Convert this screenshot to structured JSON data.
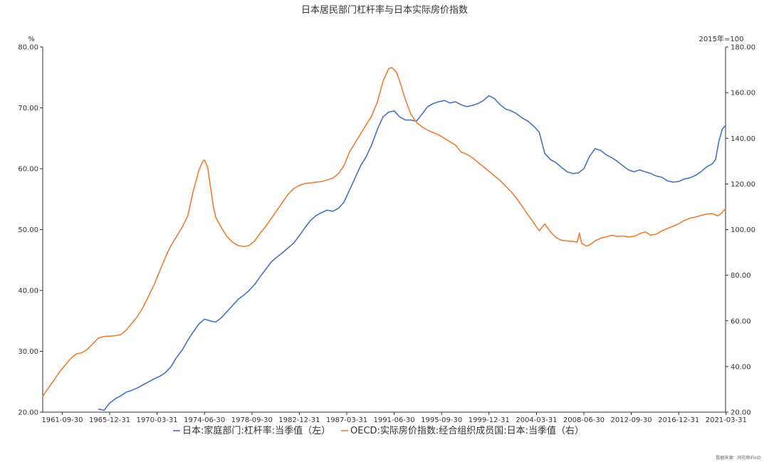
{
  "chart_data": {
    "type": "line",
    "title": "日本居民部门杠杆率与日本实际房价指数",
    "y_left_unit": "%",
    "y_right_unit": "2015年=100",
    "y_left_range": [
      20,
      80
    ],
    "y_right_range": [
      20,
      180
    ],
    "y_left_ticks": [
      "20.00",
      "30.00",
      "40.00",
      "50.00",
      "60.00",
      "70.00",
      "80.00"
    ],
    "y_right_ticks": [
      "20.00",
      "40.00",
      "60.00",
      "80.00",
      "100.00",
      "120.00",
      "140.00",
      "160.00",
      "180.00"
    ],
    "x_range": [
      1960.0,
      2021.2
    ],
    "x_ticks": [
      {
        "label": "1961-09-30",
        "x": 1961.75
      },
      {
        "label": "1965-12-31",
        "x": 1966.0
      },
      {
        "label": "1970-03-31",
        "x": 1970.25
      },
      {
        "label": "1974-06-30",
        "x": 1974.5
      },
      {
        "label": "1978-09-30",
        "x": 1978.75
      },
      {
        "label": "1982-12-31",
        "x": 1983.0
      },
      {
        "label": "1987-03-31",
        "x": 1987.25
      },
      {
        "label": "1991-06-30",
        "x": 1991.5
      },
      {
        "label": "1995-09-30",
        "x": 1995.75
      },
      {
        "label": "1999-12-31",
        "x": 2000.0
      },
      {
        "label": "2004-03-31",
        "x": 2004.25
      },
      {
        "label": "2008-06-30",
        "x": 2008.5
      },
      {
        "label": "2012-09-30",
        "x": 2012.75
      },
      {
        "label": "2016-12-31",
        "x": 2017.0
      },
      {
        "label": "2021-03-31",
        "x": 2021.25
      }
    ],
    "series": [
      {
        "name": "日本:家庭部门:杠杆率:当季值（左）",
        "axis": "left",
        "color": "#4472C4",
        "points": [
          [
            1965.0,
            20.5
          ],
          [
            1965.5,
            20.3
          ],
          [
            1966.0,
            21.5
          ],
          [
            1966.5,
            22.2
          ],
          [
            1967.0,
            22.7
          ],
          [
            1967.5,
            23.3
          ],
          [
            1968.0,
            23.6
          ],
          [
            1968.5,
            24.0
          ],
          [
            1969.0,
            24.5
          ],
          [
            1969.5,
            25.0
          ],
          [
            1970.0,
            25.5
          ],
          [
            1970.5,
            25.9
          ],
          [
            1971.0,
            26.5
          ],
          [
            1971.5,
            27.5
          ],
          [
            1972.0,
            29.0
          ],
          [
            1972.5,
            30.2
          ],
          [
            1973.0,
            31.8
          ],
          [
            1973.5,
            33.2
          ],
          [
            1974.0,
            34.5
          ],
          [
            1974.5,
            35.3
          ],
          [
            1975.0,
            35.0
          ],
          [
            1975.5,
            34.8
          ],
          [
            1976.0,
            35.5
          ],
          [
            1976.5,
            36.5
          ],
          [
            1977.0,
            37.5
          ],
          [
            1977.5,
            38.5
          ],
          [
            1978.0,
            39.2
          ],
          [
            1978.5,
            40.0
          ],
          [
            1979.0,
            41.0
          ],
          [
            1979.5,
            42.3
          ],
          [
            1980.0,
            43.5
          ],
          [
            1980.5,
            44.7
          ],
          [
            1981.0,
            45.5
          ],
          [
            1981.5,
            46.2
          ],
          [
            1982.0,
            47.0
          ],
          [
            1982.5,
            47.8
          ],
          [
            1983.0,
            49.0
          ],
          [
            1983.5,
            50.3
          ],
          [
            1984.0,
            51.5
          ],
          [
            1984.5,
            52.3
          ],
          [
            1985.0,
            52.8
          ],
          [
            1985.5,
            53.2
          ],
          [
            1986.0,
            53.0
          ],
          [
            1986.5,
            53.5
          ],
          [
            1987.0,
            54.5
          ],
          [
            1987.5,
            56.5
          ],
          [
            1988.0,
            58.5
          ],
          [
            1988.5,
            60.5
          ],
          [
            1989.0,
            62.0
          ],
          [
            1989.5,
            64.0
          ],
          [
            1990.0,
            66.5
          ],
          [
            1990.5,
            68.5
          ],
          [
            1991.0,
            69.3
          ],
          [
            1991.5,
            69.5
          ],
          [
            1992.0,
            68.5
          ],
          [
            1992.5,
            68.0
          ],
          [
            1993.0,
            68.0
          ],
          [
            1993.5,
            67.8
          ],
          [
            1994.0,
            69.0
          ],
          [
            1994.5,
            70.2
          ],
          [
            1995.0,
            70.7
          ],
          [
            1995.5,
            71.0
          ],
          [
            1996.0,
            71.2
          ],
          [
            1996.5,
            70.8
          ],
          [
            1997.0,
            71.0
          ],
          [
            1997.5,
            70.5
          ],
          [
            1998.0,
            70.2
          ],
          [
            1998.5,
            70.4
          ],
          [
            1999.0,
            70.7
          ],
          [
            1999.5,
            71.2
          ],
          [
            2000.0,
            72.0
          ],
          [
            2000.5,
            71.5
          ],
          [
            2001.0,
            70.5
          ],
          [
            2001.5,
            69.8
          ],
          [
            2002.0,
            69.5
          ],
          [
            2002.5,
            69.0
          ],
          [
            2003.0,
            68.3
          ],
          [
            2003.5,
            67.8
          ],
          [
            2004.0,
            67.0
          ],
          [
            2004.5,
            66.0
          ],
          [
            2005.0,
            62.5
          ],
          [
            2005.5,
            61.5
          ],
          [
            2006.0,
            61.0
          ],
          [
            2006.5,
            60.2
          ],
          [
            2007.0,
            59.5
          ],
          [
            2007.5,
            59.2
          ],
          [
            2008.0,
            59.3
          ],
          [
            2008.5,
            60.0
          ],
          [
            2009.0,
            62.0
          ],
          [
            2009.5,
            63.3
          ],
          [
            2010.0,
            63.0
          ],
          [
            2010.5,
            62.3
          ],
          [
            2011.0,
            61.8
          ],
          [
            2011.5,
            61.2
          ],
          [
            2012.0,
            60.5
          ],
          [
            2012.5,
            59.8
          ],
          [
            2013.0,
            59.5
          ],
          [
            2013.5,
            59.8
          ],
          [
            2014.0,
            59.5
          ],
          [
            2014.5,
            59.2
          ],
          [
            2015.0,
            58.8
          ],
          [
            2015.5,
            58.6
          ],
          [
            2016.0,
            58.0
          ],
          [
            2016.5,
            57.8
          ],
          [
            2017.0,
            57.9
          ],
          [
            2017.5,
            58.3
          ],
          [
            2018.0,
            58.5
          ],
          [
            2018.5,
            58.9
          ],
          [
            2019.0,
            59.5
          ],
          [
            2019.5,
            60.3
          ],
          [
            2020.0,
            60.8
          ],
          [
            2020.3,
            61.5
          ],
          [
            2020.6,
            64.5
          ],
          [
            2020.9,
            66.5
          ],
          [
            2021.25,
            67.2
          ]
        ]
      },
      {
        "name": "OECD:实际房价指数:经合组织成员国:日本:当季值（右）",
        "axis": "right",
        "color": "#ED7D31",
        "points": [
          [
            1960.0,
            27.0
          ],
          [
            1960.5,
            30.5
          ],
          [
            1961.0,
            34.0
          ],
          [
            1961.5,
            37.5
          ],
          [
            1962.0,
            40.5
          ],
          [
            1962.5,
            43.5
          ],
          [
            1963.0,
            45.5
          ],
          [
            1963.5,
            46.0
          ],
          [
            1964.0,
            47.5
          ],
          [
            1964.5,
            50.0
          ],
          [
            1965.0,
            52.5
          ],
          [
            1965.5,
            53.2
          ],
          [
            1966.0,
            53.3
          ],
          [
            1966.5,
            53.5
          ],
          [
            1967.0,
            54.0
          ],
          [
            1967.5,
            56.0
          ],
          [
            1968.0,
            59.0
          ],
          [
            1968.5,
            62.0
          ],
          [
            1969.0,
            66.0
          ],
          [
            1969.5,
            71.0
          ],
          [
            1970.0,
            76.0
          ],
          [
            1970.5,
            82.0
          ],
          [
            1971.0,
            88.0
          ],
          [
            1971.5,
            93.0
          ],
          [
            1972.0,
            97.0
          ],
          [
            1972.5,
            101.0
          ],
          [
            1973.0,
            106.0
          ],
          [
            1973.5,
            117.0
          ],
          [
            1974.0,
            126.0
          ],
          [
            1974.3,
            129.5
          ],
          [
            1974.5,
            130.5
          ],
          [
            1974.8,
            127.0
          ],
          [
            1975.0,
            120.0
          ],
          [
            1975.3,
            110.0
          ],
          [
            1975.5,
            105.5
          ],
          [
            1976.0,
            101.0
          ],
          [
            1976.5,
            97.0
          ],
          [
            1977.0,
            94.5
          ],
          [
            1977.5,
            93.0
          ],
          [
            1978.0,
            92.5
          ],
          [
            1978.5,
            93.0
          ],
          [
            1979.0,
            95.0
          ],
          [
            1979.5,
            98.5
          ],
          [
            1980.0,
            101.5
          ],
          [
            1980.5,
            105.0
          ],
          [
            1981.0,
            108.5
          ],
          [
            1981.5,
            112.0
          ],
          [
            1982.0,
            115.5
          ],
          [
            1982.5,
            118.0
          ],
          [
            1983.0,
            119.3
          ],
          [
            1983.5,
            120.2
          ],
          [
            1984.0,
            120.4
          ],
          [
            1984.5,
            120.8
          ],
          [
            1985.0,
            121.0
          ],
          [
            1985.5,
            121.8
          ],
          [
            1986.0,
            122.5
          ],
          [
            1986.5,
            124.5
          ],
          [
            1987.0,
            128.0
          ],
          [
            1987.5,
            134.0
          ],
          [
            1988.0,
            138.0
          ],
          [
            1988.5,
            142.0
          ],
          [
            1989.0,
            146.0
          ],
          [
            1989.5,
            150.0
          ],
          [
            1990.0,
            156.0
          ],
          [
            1990.5,
            165.0
          ],
          [
            1991.0,
            170.5
          ],
          [
            1991.3,
            171.0
          ],
          [
            1991.7,
            169.0
          ],
          [
            1992.0,
            165.0
          ],
          [
            1992.5,
            157.0
          ],
          [
            1993.0,
            150.5
          ],
          [
            1993.5,
            147.0
          ],
          [
            1994.0,
            145.0
          ],
          [
            1994.5,
            143.5
          ],
          [
            1995.0,
            142.5
          ],
          [
            1995.5,
            141.5
          ],
          [
            1996.0,
            140.0
          ],
          [
            1996.5,
            138.5
          ],
          [
            1997.0,
            137.0
          ],
          [
            1997.5,
            134.0
          ],
          [
            1998.0,
            133.0
          ],
          [
            1998.5,
            131.5
          ],
          [
            1999.0,
            129.5
          ],
          [
            1999.5,
            127.5
          ],
          [
            2000.0,
            125.5
          ],
          [
            2000.5,
            123.5
          ],
          [
            2001.0,
            121.5
          ],
          [
            2001.5,
            119.0
          ],
          [
            2002.0,
            116.5
          ],
          [
            2002.5,
            113.5
          ],
          [
            2003.0,
            110.0
          ],
          [
            2003.5,
            106.5
          ],
          [
            2004.0,
            103.0
          ],
          [
            2004.5,
            99.5
          ],
          [
            2005.0,
            102.5
          ],
          [
            2005.5,
            99.0
          ],
          [
            2006.0,
            96.5
          ],
          [
            2006.5,
            95.3
          ],
          [
            2007.0,
            95.0
          ],
          [
            2007.5,
            94.8
          ],
          [
            2007.9,
            94.5
          ],
          [
            2008.1,
            98.5
          ],
          [
            2008.3,
            94.0
          ],
          [
            2008.7,
            92.8
          ],
          [
            2009.0,
            93.2
          ],
          [
            2009.5,
            95.0
          ],
          [
            2010.0,
            96.2
          ],
          [
            2010.5,
            96.8
          ],
          [
            2011.0,
            97.5
          ],
          [
            2011.5,
            97.0
          ],
          [
            2012.0,
            97.2
          ],
          [
            2012.5,
            96.8
          ],
          [
            2013.0,
            97.0
          ],
          [
            2013.5,
            98.2
          ],
          [
            2014.0,
            99.0
          ],
          [
            2014.5,
            97.5
          ],
          [
            2015.0,
            98.0
          ],
          [
            2015.5,
            99.5
          ],
          [
            2016.0,
            100.5
          ],
          [
            2016.5,
            101.5
          ],
          [
            2017.0,
            102.5
          ],
          [
            2017.5,
            104.0
          ],
          [
            2018.0,
            105.0
          ],
          [
            2018.5,
            105.5
          ],
          [
            2019.0,
            106.2
          ],
          [
            2019.5,
            106.8
          ],
          [
            2020.0,
            107.0
          ],
          [
            2020.5,
            106.0
          ],
          [
            2020.8,
            107.0
          ],
          [
            2021.25,
            109.5
          ]
        ]
      }
    ],
    "source_text": "数据来源：同花顺iFinD"
  }
}
